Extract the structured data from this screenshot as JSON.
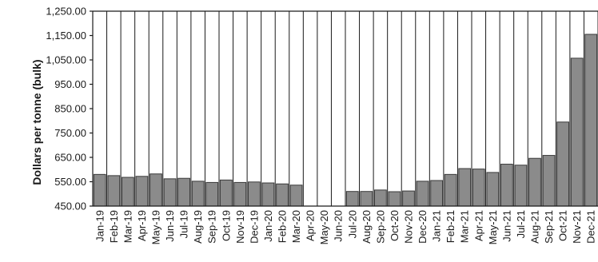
{
  "chart_data": {
    "type": "bar",
    "title": "",
    "xlabel": "",
    "ylabel": "Dollars per tonne (bulk)",
    "ylim": [
      450,
      1250
    ],
    "yticks": [
      "1,250.00",
      "1,150.00",
      "1,050.00",
      "950.00",
      "850.00",
      "750.00",
      "650.00",
      "550.00",
      "450.00"
    ],
    "ytick_values": [
      1250,
      1150,
      1050,
      950,
      850,
      750,
      650,
      550,
      450
    ],
    "categories": [
      "Jan-19",
      "Feb-19",
      "Mar-19",
      "Apr-19",
      "May-19",
      "Jun-19",
      "Jul-19",
      "Aug-19",
      "Sep-19",
      "Oct-19",
      "Nov-19",
      "Dec-19",
      "Jan-20",
      "Feb-20",
      "Mar-20",
      "Apr-20",
      "May-20",
      "Jun-20",
      "Jul-20",
      "Aug-20",
      "Sep-20",
      "Oct-20",
      "Nov-20",
      "Dec-20",
      "Jan-21",
      "Feb-21",
      "Mar-21",
      "Apr-21",
      "May-21",
      "Jun-21",
      "Jul-21",
      "Aug-21",
      "Sep-21",
      "Oct-21",
      "Nov-21",
      "Dec-21"
    ],
    "values": [
      580,
      575,
      568,
      572,
      582,
      562,
      564,
      552,
      547,
      557,
      547,
      549,
      545,
      541,
      536,
      null,
      null,
      null,
      510,
      510,
      516,
      509,
      512,
      552,
      555,
      580,
      604,
      602,
      588,
      622,
      618,
      646,
      658,
      795,
      1057,
      1155
    ],
    "grid": "vertical lines between categories",
    "colors": {
      "bar": "#8b8b8b",
      "outline": "#3a3a3a"
    }
  }
}
